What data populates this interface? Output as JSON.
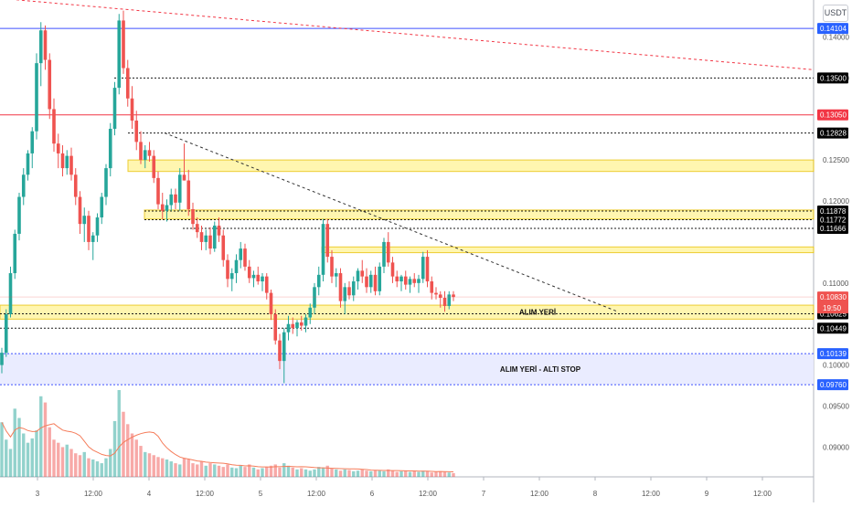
{
  "currency_button": "USDT",
  "colors": {
    "up": "#26a69a",
    "down": "#ef5350",
    "zone": "#fff59d",
    "zone_border": "#e8c000",
    "stop_zone": "#e8eaff",
    "blue_line": "#3f51ff",
    "red_line": "#f23645",
    "dotted": "#1a1a1a",
    "last_price": "#ef5350",
    "volume_ma": "#f57c5a"
  },
  "chart_data": {
    "type": "candlestick",
    "y_range": [
      0.0935,
      0.1445
    ],
    "y_ticks": [
      "0.14000",
      "0.13500",
      "0.12500",
      "0.12000",
      "0.11000",
      "0.10000",
      "0.09500",
      "0.09000"
    ],
    "x_ticks": [
      "3",
      "12:00",
      "4",
      "12:00",
      "5",
      "12:00",
      "6",
      "12:00",
      "7",
      "12:00",
      "8",
      "12:00",
      "9",
      "12:00"
    ],
    "candles": [
      [
        0.1,
        0.1021,
        0.099,
        0.1015
      ],
      [
        0.1015,
        0.1068,
        0.101,
        0.1062
      ],
      [
        0.1062,
        0.112,
        0.1058,
        0.1112
      ],
      [
        0.1112,
        0.1165,
        0.1105,
        0.116
      ],
      [
        0.116,
        0.121,
        0.1152,
        0.1205
      ],
      [
        0.1205,
        0.124,
        0.1195,
        0.1232
      ],
      [
        0.1232,
        0.1262,
        0.1225,
        0.1258
      ],
      [
        0.1258,
        0.129,
        0.124,
        0.1285
      ],
      [
        0.1285,
        0.138,
        0.1275,
        0.1368
      ],
      [
        0.1368,
        0.1418,
        0.134,
        0.1408
      ],
      [
        0.1408,
        0.1414,
        0.136,
        0.1372
      ],
      [
        0.1372,
        0.138,
        0.13,
        0.1312
      ],
      [
        0.1312,
        0.1325,
        0.126,
        0.127
      ],
      [
        0.127,
        0.1282,
        0.124,
        0.1258
      ],
      [
        0.1258,
        0.1268,
        0.123,
        0.124
      ],
      [
        0.124,
        0.1262,
        0.1232,
        0.1255
      ],
      [
        0.1255,
        0.1265,
        0.1225,
        0.1232
      ],
      [
        0.1232,
        0.124,
        0.1195,
        0.1205
      ],
      [
        0.1205,
        0.1212,
        0.116,
        0.1172
      ],
      [
        0.1172,
        0.1192,
        0.115,
        0.1182
      ],
      [
        0.1182,
        0.1188,
        0.114,
        0.115
      ],
      [
        0.115,
        0.1162,
        0.1128,
        0.1158
      ],
      [
        0.1158,
        0.1185,
        0.115,
        0.118
      ],
      [
        0.118,
        0.121,
        0.1172,
        0.1205
      ],
      [
        0.1205,
        0.1245,
        0.1195,
        0.124
      ],
      [
        0.124,
        0.1295,
        0.123,
        0.1288
      ],
      [
        0.1288,
        0.1345,
        0.128,
        0.1338
      ],
      [
        0.1338,
        0.1428,
        0.133,
        0.142
      ],
      [
        0.142,
        0.1432,
        0.1355,
        0.1362
      ],
      [
        0.1362,
        0.1372,
        0.1315,
        0.1325
      ],
      [
        0.1325,
        0.134,
        0.1288,
        0.1298
      ],
      [
        0.1298,
        0.131,
        0.1262,
        0.1272
      ],
      [
        0.1272,
        0.1285,
        0.1245,
        0.125
      ],
      [
        0.125,
        0.1268,
        0.124,
        0.1262
      ],
      [
        0.1262,
        0.1272,
        0.1248,
        0.1255
      ],
      [
        0.1255,
        0.1262,
        0.1222,
        0.1228
      ],
      [
        0.1228,
        0.1236,
        0.119,
        0.1196
      ],
      [
        0.1196,
        0.121,
        0.1178,
        0.1188
      ],
      [
        0.1188,
        0.1202,
        0.1175,
        0.1195
      ],
      [
        0.1195,
        0.1215,
        0.1188,
        0.1208
      ],
      [
        0.1208,
        0.1215,
        0.119,
        0.1198
      ],
      [
        0.1198,
        0.124,
        0.1188,
        0.1232
      ],
      [
        0.1232,
        0.127,
        0.1225,
        0.1225
      ],
      [
        0.1225,
        0.1238,
        0.1182,
        0.119
      ],
      [
        0.119,
        0.1198,
        0.1165,
        0.1172
      ],
      [
        0.1172,
        0.118,
        0.1155,
        0.1162
      ],
      [
        0.1162,
        0.117,
        0.114,
        0.115
      ],
      [
        0.115,
        0.1165,
        0.114,
        0.1158
      ],
      [
        0.1158,
        0.1168,
        0.1135,
        0.1142
      ],
      [
        0.1142,
        0.1175,
        0.1138,
        0.117
      ],
      [
        0.117,
        0.118,
        0.115,
        0.1158
      ],
      [
        0.1158,
        0.1165,
        0.112,
        0.1128
      ],
      [
        0.1128,
        0.1135,
        0.1095,
        0.1105
      ],
      [
        0.1105,
        0.1118,
        0.109,
        0.1112
      ],
      [
        0.1112,
        0.1135,
        0.11,
        0.1128
      ],
      [
        0.1128,
        0.115,
        0.1118,
        0.1142
      ],
      [
        0.1142,
        0.1148,
        0.1115,
        0.112
      ],
      [
        0.112,
        0.1128,
        0.11,
        0.1106
      ],
      [
        0.1106,
        0.1115,
        0.1095,
        0.111
      ],
      [
        0.111,
        0.112,
        0.1098,
        0.1102
      ],
      [
        0.1102,
        0.1112,
        0.109,
        0.1108
      ],
      [
        0.1108,
        0.1112,
        0.108,
        0.1088
      ],
      [
        0.1088,
        0.1092,
        0.1055,
        0.1062
      ],
      [
        0.1062,
        0.1068,
        0.1025,
        0.103
      ],
      [
        0.103,
        0.1038,
        0.0995,
        0.1005
      ],
      [
        0.1005,
        0.1045,
        0.0978,
        0.104
      ],
      [
        0.104,
        0.106,
        0.103,
        0.105
      ],
      [
        0.105,
        0.1058,
        0.1038,
        0.1045
      ],
      [
        0.1045,
        0.1055,
        0.1035,
        0.1052
      ],
      [
        0.1052,
        0.106,
        0.1042,
        0.1048
      ],
      [
        0.1048,
        0.1062,
        0.104,
        0.1058
      ],
      [
        0.1058,
        0.1075,
        0.105,
        0.107
      ],
      [
        0.107,
        0.11,
        0.1062,
        0.1095
      ],
      [
        0.1095,
        0.112,
        0.1085,
        0.111
      ],
      [
        0.111,
        0.1178,
        0.1102,
        0.1172
      ],
      [
        0.1172,
        0.1178,
        0.1125,
        0.1132
      ],
      [
        0.1132,
        0.114,
        0.11,
        0.1108
      ],
      [
        0.1108,
        0.1118,
        0.1095,
        0.1112
      ],
      [
        0.1112,
        0.1118,
        0.107,
        0.1078
      ],
      [
        0.1078,
        0.11,
        0.1062,
        0.1095
      ],
      [
        0.1095,
        0.1102,
        0.108,
        0.1085
      ],
      [
        0.1085,
        0.1108,
        0.1078,
        0.1102
      ],
      [
        0.1102,
        0.1118,
        0.1092,
        0.1115
      ],
      [
        0.1115,
        0.1128,
        0.11,
        0.1108
      ],
      [
        0.1108,
        0.1118,
        0.1088,
        0.1095
      ],
      [
        0.1095,
        0.1115,
        0.1088,
        0.111
      ],
      [
        0.111,
        0.112,
        0.1085,
        0.109
      ],
      [
        0.109,
        0.1125,
        0.1085,
        0.112
      ],
      [
        0.112,
        0.1155,
        0.1112,
        0.115
      ],
      [
        0.115,
        0.1162,
        0.112,
        0.1125
      ],
      [
        0.1125,
        0.1132,
        0.11,
        0.1108
      ],
      [
        0.1108,
        0.1115,
        0.1095,
        0.1102
      ],
      [
        0.1102,
        0.111,
        0.109,
        0.1108
      ],
      [
        0.1108,
        0.1115,
        0.1092,
        0.1098
      ],
      [
        0.1098,
        0.1108,
        0.1088,
        0.1105
      ],
      [
        0.1105,
        0.1112,
        0.1095,
        0.11
      ],
      [
        0.11,
        0.111,
        0.1088,
        0.1105
      ],
      [
        0.1105,
        0.1138,
        0.11,
        0.1132
      ],
      [
        0.1132,
        0.114,
        0.1095,
        0.1102
      ],
      [
        0.1102,
        0.1108,
        0.108,
        0.1088
      ],
      [
        0.1088,
        0.1095,
        0.108,
        0.1086
      ],
      [
        0.1086,
        0.109,
        0.107,
        0.1082
      ],
      [
        0.1082,
        0.109,
        0.1065,
        0.1072
      ],
      [
        0.1072,
        0.109,
        0.1068,
        0.1086
      ],
      [
        0.1086,
        0.109,
        0.1078,
        0.1083
      ]
    ],
    "volumes": [
      88,
      60,
      45,
      110,
      95,
      70,
      55,
      62,
      75,
      130,
      120,
      80,
      60,
      55,
      48,
      52,
      45,
      38,
      35,
      40,
      30,
      28,
      25,
      22,
      30,
      45,
      90,
      140,
      105,
      85,
      70,
      60,
      50,
      40,
      38,
      35,
      32,
      30,
      28,
      25,
      22,
      20,
      30,
      28,
      22,
      20,
      25,
      18,
      22,
      20,
      18,
      16,
      20,
      15,
      14,
      18,
      16,
      20,
      15,
      12,
      14,
      16,
      18,
      20,
      15,
      22,
      18,
      15,
      12,
      14,
      12,
      10,
      12,
      16,
      15,
      18,
      14,
      12,
      10,
      12,
      11,
      9,
      10,
      12,
      10,
      9,
      11,
      10,
      9,
      12,
      10,
      8,
      9,
      10,
      8,
      9,
      8,
      10,
      9,
      7,
      8,
      9,
      8,
      7,
      6
    ],
    "horizontal_levels": [
      {
        "value": 0.14104,
        "label": "0.14104",
        "style": "blue-solid"
      },
      {
        "value": 0.135,
        "label": "0.13500",
        "style": "dotted"
      },
      {
        "value": 0.1305,
        "label": "0.13050",
        "style": "red-solid"
      },
      {
        "value": 0.12828,
        "label": "0.12828",
        "style": "dotted"
      },
      {
        "value": 0.11878,
        "label": "0.11878",
        "style": "dotted"
      },
      {
        "value": 0.11772,
        "label": "0.11772",
        "style": "dotted"
      },
      {
        "value": 0.11666,
        "label": "0.11666",
        "style": "dotted"
      },
      {
        "value": 0.10625,
        "label": "0.10625",
        "style": "dotted"
      },
      {
        "value": 0.10449,
        "label": "0.10449",
        "style": "dotted"
      },
      {
        "value": 0.10139,
        "label": "0.10139",
        "style": "blue-dotted"
      },
      {
        "value": 0.0976,
        "label": "0.09760",
        "style": "blue-dotted"
      }
    ],
    "last_price": {
      "label": "0.10830",
      "countdown": "19:50",
      "value": 0.1083
    },
    "zones": [
      {
        "top": 0.125,
        "bottom": 0.1236
      },
      {
        "top": 0.1189,
        "bottom": 0.1178
      },
      {
        "top": 0.1144,
        "bottom": 0.1137
      },
      {
        "top": 0.1073,
        "bottom": 0.1056
      },
      {
        "top": 0.10139,
        "bottom": 0.0976,
        "stop": true
      }
    ],
    "annotations": [
      {
        "text": "ALIM YERİ",
        "price": 0.1065
      },
      {
        "text": "ALIM YERİ - ALTI STOP",
        "price": 0.0995
      }
    ]
  }
}
